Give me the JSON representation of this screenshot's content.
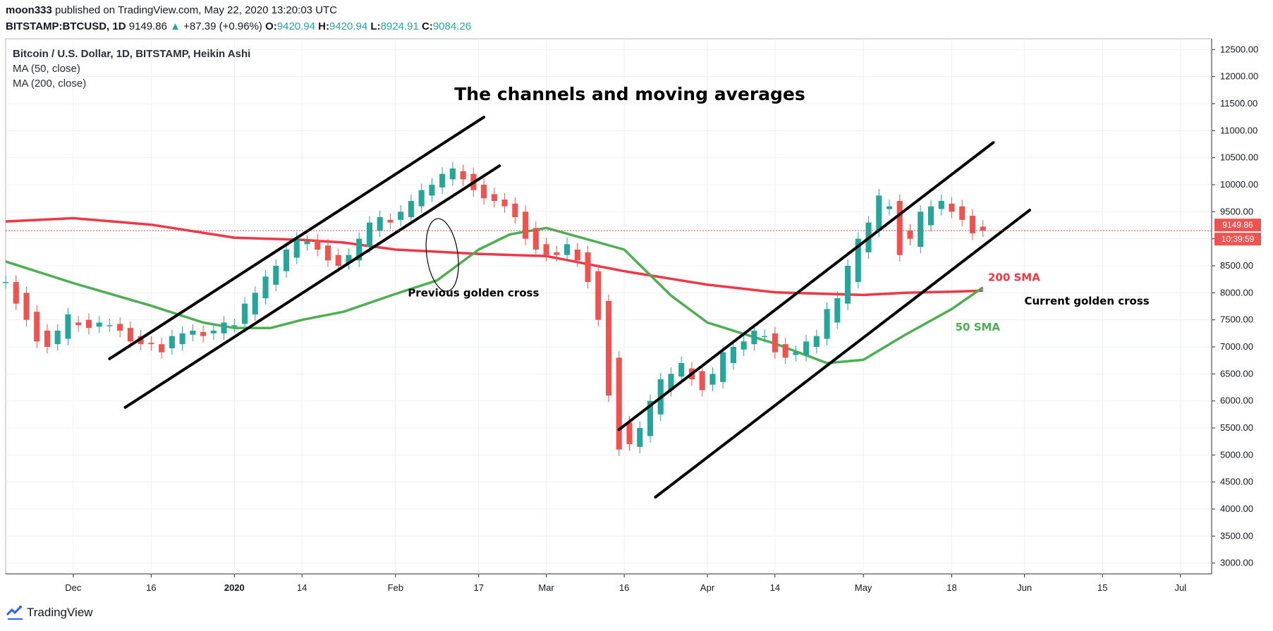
{
  "header": {
    "author": "moon333",
    "published_text": "published on TradingView.com, May 22, 2020 13:20:03 UTC"
  },
  "quote": {
    "symbol": "BITSTAMP:BTCUSD, 1D",
    "price": "9149.86",
    "change": "+87.39 (+0.96%)",
    "o_label": "O:",
    "o": "9420.94",
    "h_label": "H:",
    "h": "9420.94",
    "l_label": "L:",
    "l": "8924.91",
    "c_label": "C:",
    "c": "9084.26"
  },
  "legend": {
    "title": "Bitcoin / U.S. Dollar, 1D, BITSTAMP, Heikin Ashi",
    "ma50": "MA (50, close)",
    "ma200": "MA (200, close)"
  },
  "brand": {
    "name": "TradingView"
  },
  "colors": {
    "up": "#26a69a",
    "down": "#ef5350",
    "ma50": "#4caf50",
    "ma200": "#f23645",
    "channel": "#000000"
  },
  "chart_data": {
    "type": "line",
    "title": "The channels and moving averages",
    "style": "heikin-ashi candlestick",
    "ylim": [
      2800,
      12700
    ],
    "y_ticks": [
      "12500.00",
      "12000.00",
      "11500.00",
      "11000.00",
      "10500.00",
      "10000.00",
      "9500.00",
      "9000.00",
      "8500.00",
      "8000.00",
      "7500.00",
      "7000.00",
      "6500.00",
      "6000.00",
      "5500.00",
      "5000.00",
      "4500.00",
      "4000.00",
      "3500.00",
      "3000.00"
    ],
    "x_ticks": [
      "Dec",
      "16",
      "2020",
      "14",
      "Feb",
      "17",
      "Mar",
      "16",
      "Apr",
      "14",
      "May",
      "18",
      "Jun",
      "15",
      "Jul"
    ],
    "x_tick_days": [
      0,
      15,
      31,
      44,
      62,
      78,
      91,
      106,
      122,
      135,
      152,
      169,
      183,
      198,
      213
    ],
    "x_range_days": [
      -13,
      219
    ],
    "current_price_label": "9149.86",
    "countdown_label": "10:39:59",
    "annotations": [
      {
        "text": "Previous golden cross",
        "day": 77,
        "y": 7930
      },
      {
        "text": "Current golden cross",
        "day": 195,
        "y": 7780
      },
      {
        "text": "200 SMA",
        "day": 181,
        "y": 8220
      },
      {
        "text": "50 SMA",
        "day": 174,
        "y": 7300
      }
    ],
    "channels": [
      {
        "x1": 7,
        "y1": 6780,
        "x2": 79,
        "y2": 11250
      },
      {
        "x1": 10,
        "y1": 5880,
        "x2": 82,
        "y2": 10350
      },
      {
        "x1": 105,
        "y1": 5470,
        "x2": 177,
        "y2": 10780
      },
      {
        "x1": 112,
        "y1": 4220,
        "x2": 184,
        "y2": 9530
      }
    ],
    "series": [
      {
        "name": "MA (200, close)",
        "x": [
          -13,
          0,
          15,
          31,
          44,
          52,
          62,
          78,
          91,
          106,
          122,
          135,
          152,
          160,
          169,
          175
        ],
        "y": [
          9320,
          9380,
          9260,
          9020,
          8980,
          8930,
          8800,
          8720,
          8680,
          8400,
          8150,
          8010,
          7960,
          8000,
          8020,
          8040
        ]
      },
      {
        "name": "MA (50, close)",
        "x": [
          -13,
          0,
          15,
          25,
          31,
          38,
          44,
          52,
          62,
          70,
          78,
          84,
          91,
          106,
          115,
          122,
          135,
          145,
          152,
          160,
          169,
          175
        ],
        "y": [
          8580,
          8180,
          7760,
          7450,
          7350,
          7350,
          7500,
          7650,
          7980,
          8230,
          8800,
          9080,
          9200,
          8800,
          7950,
          7450,
          7060,
          6700,
          6760,
          7220,
          7700,
          8100
        ]
      },
      {
        "name": "Heikin Ashi close",
        "x": [
          -13,
          -11,
          -9,
          -7,
          -5,
          -3,
          -1,
          1,
          3,
          5,
          7,
          9,
          11,
          13,
          15,
          17,
          19,
          21,
          23,
          25,
          27,
          29,
          31,
          33,
          35,
          37,
          39,
          41,
          43,
          45,
          47,
          49,
          51,
          53,
          55,
          57,
          59,
          61,
          63,
          65,
          67,
          69,
          71,
          73,
          75,
          77,
          79,
          81,
          83,
          85,
          87,
          89,
          91,
          93,
          95,
          97,
          99,
          101,
          103,
          105,
          107,
          109,
          111,
          113,
          115,
          117,
          119,
          121,
          123,
          125,
          127,
          129,
          131,
          133,
          135,
          137,
          139,
          141,
          143,
          145,
          147,
          149,
          151,
          153,
          155,
          157,
          159,
          161,
          163,
          165,
          167,
          169,
          171,
          173,
          175
        ],
        "y": [
          8200,
          7800,
          7500,
          7100,
          7000,
          7300,
          7600,
          7400,
          7350,
          7450,
          7400,
          7300,
          7100,
          7050,
          7050,
          6900,
          7200,
          7250,
          7300,
          7200,
          7300,
          7450,
          7400,
          7800,
          8000,
          8300,
          8500,
          8800,
          9000,
          8950,
          8800,
          8600,
          8500,
          8700,
          9000,
          9300,
          9400,
          9300,
          9500,
          9700,
          9900,
          10000,
          10200,
          10300,
          10100,
          9900,
          9750,
          9700,
          9600,
          9400,
          9000,
          8800,
          8700,
          8700,
          8900,
          8600,
          8200,
          7500,
          6100,
          5100,
          5200,
          5500,
          6000,
          6400,
          6500,
          6700,
          6400,
          6200,
          6500,
          6900,
          7000,
          7100,
          7300,
          7200,
          6900,
          6800,
          6900,
          7100,
          7200,
          7700,
          7900,
          8500,
          9000,
          9300,
          9800,
          9600,
          8700,
          9000,
          9500,
          9600,
          9700,
          9500,
          9350,
          9100,
          9150
        ],
        "color": "candles"
      }
    ]
  }
}
